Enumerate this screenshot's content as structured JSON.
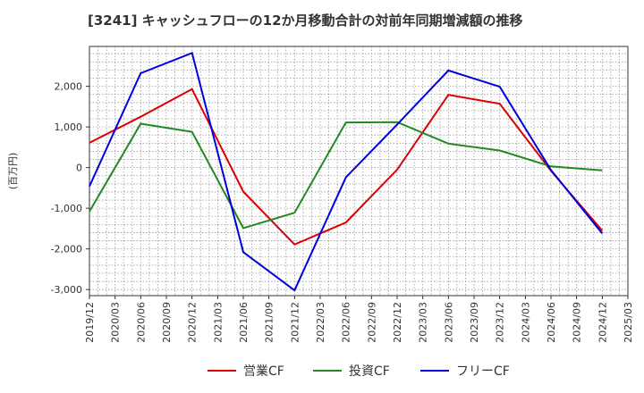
{
  "chart_data": {
    "type": "line",
    "title": "[3241]  キャッシュフローの12か月移動合計の対前年同期増減額の推移",
    "xlabel": "",
    "ylabel": "(百万円)",
    "x_tick_labels": [
      "2019/12",
      "2020/03",
      "2020/06",
      "2020/09",
      "2020/12",
      "2021/03",
      "2021/06",
      "2021/09",
      "2021/12",
      "2022/03",
      "2022/06",
      "2022/09",
      "2022/12",
      "2023/03",
      "2023/06",
      "2023/09",
      "2023/12",
      "2024/03",
      "2024/06",
      "2024/09",
      "2024/12",
      "2025/03"
    ],
    "y_ticks": [
      -3000,
      -2000,
      -1000,
      0,
      1000,
      2000
    ],
    "y_tick_labels": [
      "-3,000",
      "-2,000",
      "-1,000",
      "0",
      "1,000",
      "2,000"
    ],
    "ylim": [
      -3150,
      2980
    ],
    "grid": true,
    "legend_position": "bottom",
    "series": [
      {
        "name": "営業CF",
        "color": "#dd0000",
        "x": [
          "2019/12",
          "2020/06",
          "2020/12",
          "2021/06",
          "2021/12",
          "2022/06",
          "2022/12",
          "2023/06",
          "2023/12",
          "2024/06",
          "2024/12"
        ],
        "values": [
          610,
          1250,
          1930,
          -590,
          -1890,
          -1350,
          -50,
          1790,
          1570,
          -80,
          -1550
        ]
      },
      {
        "name": "投資CF",
        "color": "#228822",
        "x": [
          "2019/12",
          "2020/06",
          "2020/12",
          "2021/06",
          "2021/12",
          "2022/06",
          "2022/12",
          "2023/06",
          "2023/12",
          "2024/06",
          "2024/12"
        ],
        "values": [
          -1080,
          1080,
          880,
          -1490,
          -1110,
          1110,
          1120,
          590,
          420,
          30,
          -70
        ]
      },
      {
        "name": "フリーCF",
        "color": "#0000dd",
        "x": [
          "2019/12",
          "2020/06",
          "2020/12",
          "2021/06",
          "2021/12",
          "2022/06",
          "2022/12",
          "2023/06",
          "2023/12",
          "2024/06",
          "2024/12"
        ],
        "values": [
          -460,
          2320,
          2820,
          -2080,
          -3020,
          -240,
          1060,
          2390,
          1990,
          -60,
          -1620
        ]
      }
    ]
  }
}
